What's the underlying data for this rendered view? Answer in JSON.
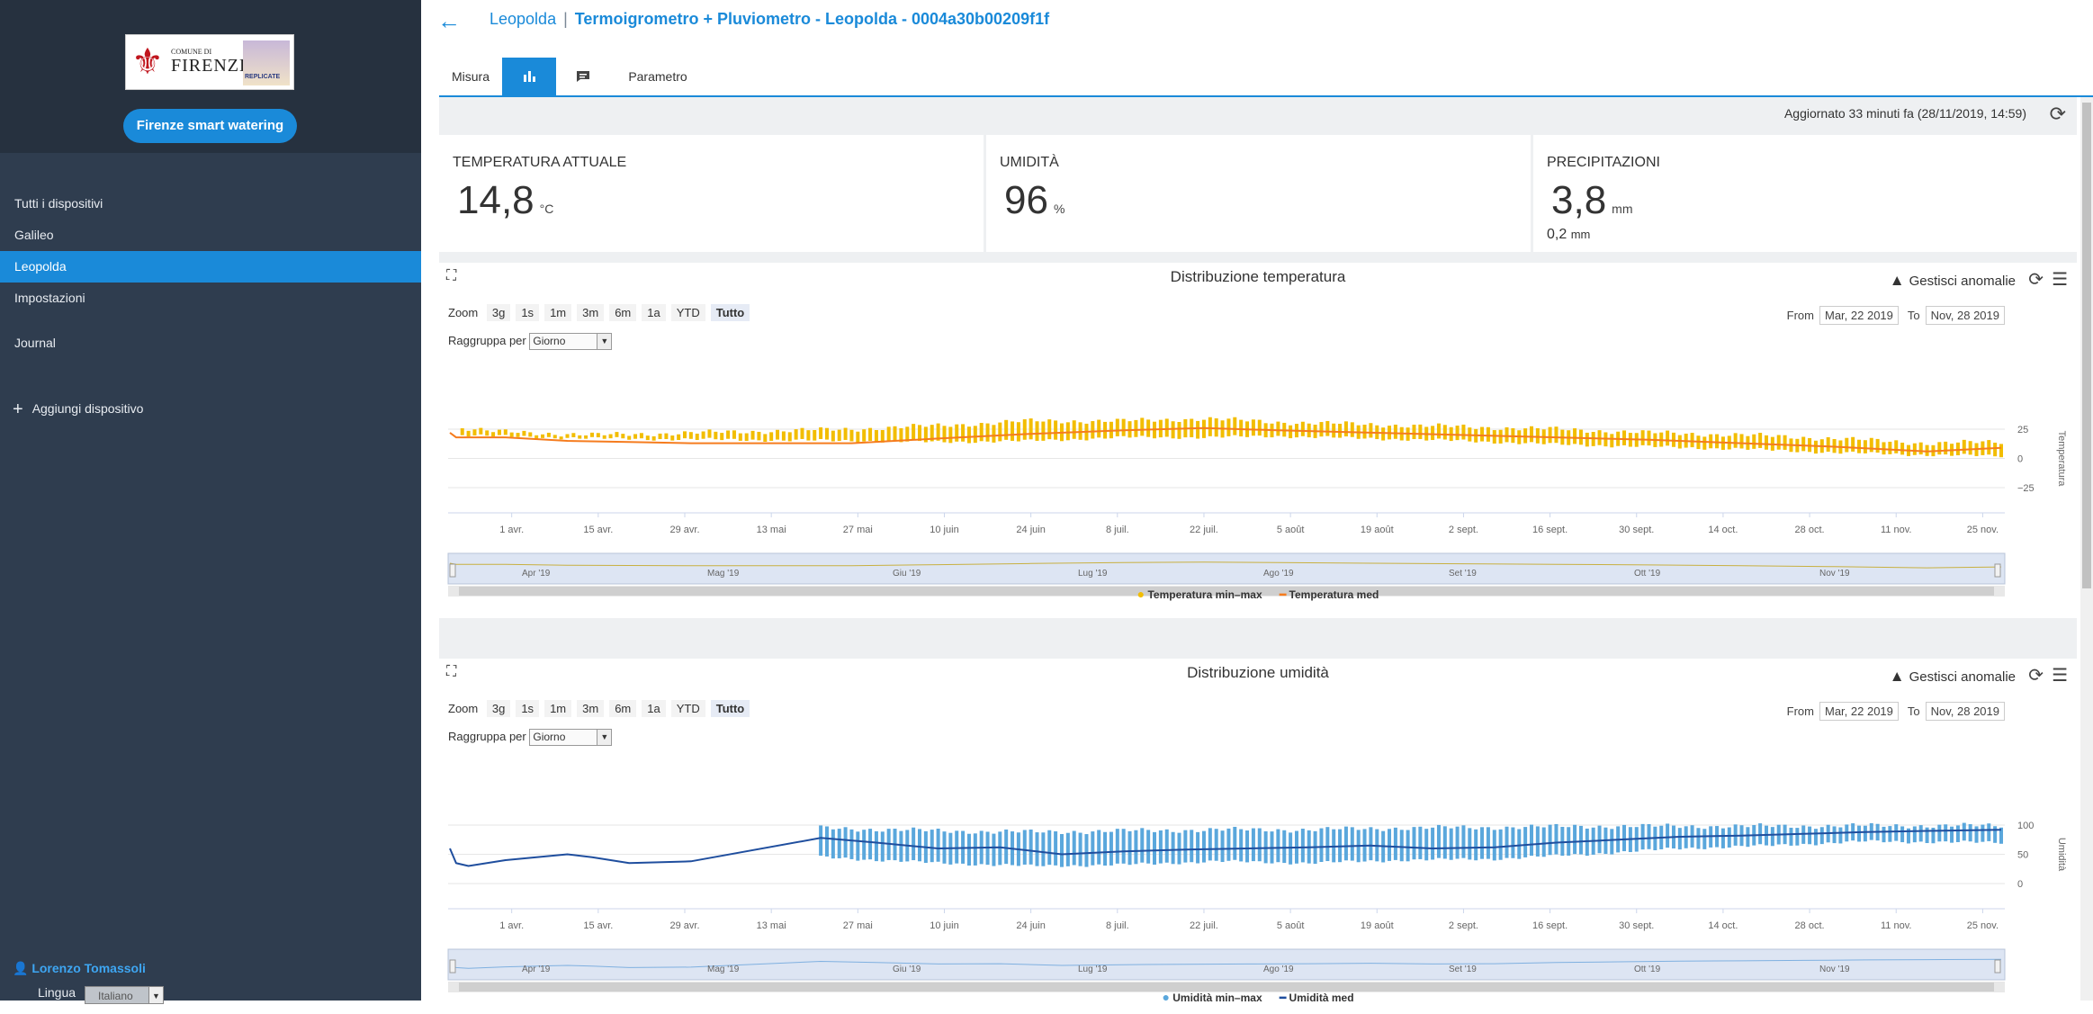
{
  "sidebar": {
    "logo": {
      "comune_small": "COMUNE DI",
      "comune_name": "FIRENZE",
      "partner": "REPLICATE"
    },
    "app_button": "Firenze smart watering",
    "nav": [
      "Tutti i dispositivi",
      "Galileo",
      "Leopolda",
      "Impostazioni",
      "Journal"
    ],
    "active_nav": "Leopolda",
    "add_device": "Aggiungi dispositivo",
    "user": "Lorenzo Tomassoli",
    "language_label": "Lingua",
    "language_value": "Italiano"
  },
  "header": {
    "breadcrumb_parent": "Leopolda",
    "separator": "|",
    "title": "Termoigrometro + Pluviometro - Leopolda - 0004a30b00209f1f"
  },
  "tabs": {
    "misura": "Misura",
    "chart_icon": "bar-chart-icon",
    "comment_icon": "comment-icon",
    "parametro": "Parametro"
  },
  "status": {
    "updated": "Aggiornato 33 minuti fa (28/11/2019, 14:59)"
  },
  "kpis": {
    "temperature": {
      "label": "TEMPERATURA ATTUALE",
      "value": "14,8",
      "unit": "°C"
    },
    "humidity": {
      "label": "UMIDITÀ",
      "value": "96",
      "unit": "%"
    },
    "rain": {
      "label": "PRECIPITAZIONI",
      "value": "3,8",
      "unit": "mm",
      "sub_value": "0,2",
      "sub_unit": "mm"
    }
  },
  "controls": {
    "zoom_label": "Zoom",
    "zoom_buttons": [
      "3g",
      "1s",
      "1m",
      "3m",
      "6m",
      "1a",
      "YTD",
      "Tutto"
    ],
    "zoom_selected": "Tutto",
    "group_label": "Raggruppa per",
    "group_value": "Giorno",
    "from_label": "From",
    "from_value": "Mar, 22 2019",
    "to_label": "To",
    "to_value": "Nov, 28 2019",
    "anomalies": "Gestisci anomalie"
  },
  "colors": {
    "accent": "#1a8ad9",
    "sidebar": "#2f3d4f",
    "temp_minmax": "#f2bd00",
    "temp_avg": "#f57c1f",
    "hum_minmax": "#5aa7dc",
    "hum_avg": "#1f4e9e"
  },
  "chart_data": [
    {
      "type": "bar",
      "title": "Distribuzione temperatura",
      "ylabel": "Temperatura",
      "ylim": [
        -25,
        25
      ],
      "yticks": [
        "25",
        "0",
        "−25"
      ],
      "xticks": [
        "1 avr.",
        "15 avr.",
        "29 avr.",
        "13 mai",
        "27 mai",
        "10 juin",
        "24 juin",
        "8 juil.",
        "22 juil.",
        "5 août",
        "19 août",
        "2 sept.",
        "16 sept.",
        "30 sept.",
        "14 oct.",
        "28 oct.",
        "11 nov.",
        "25 nov."
      ],
      "navigator_labels": [
        "Apr '19",
        "Mag '19",
        "Giu '19",
        "Lug '19",
        "Ago '19",
        "Set '19",
        "Ott '19",
        "Nov '19"
      ],
      "series": [
        {
          "name": "Temperatura min–max",
          "kind": "range",
          "start_day": 83,
          "checkpoints": [
            [
              83,
              20,
              26
            ],
            [
              88,
              19,
              23
            ],
            [
              105,
              17,
              20
            ],
            [
              146,
              15,
              25
            ],
            [
              160,
              14,
              28
            ],
            [
              175,
              15,
              32
            ],
            [
              190,
              18,
              32
            ],
            [
              203,
              18,
              34
            ],
            [
              215,
              19,
              31
            ],
            [
              230,
              17,
              29
            ],
            [
              245,
              15,
              27
            ],
            [
              260,
              12,
              25
            ],
            [
              275,
              10,
              22
            ],
            [
              290,
              8,
              20
            ],
            [
              305,
              5,
              17
            ],
            [
              320,
              3,
              13
            ],
            [
              332,
              2,
              14
            ]
          ]
        },
        {
          "name": "Temperatura med",
          "x": [
            81,
            82,
            90,
            100,
            110,
            120,
            140,
            146,
            160,
            175,
            190,
            203,
            215,
            230,
            245,
            260,
            275,
            290,
            305,
            320,
            332
          ],
          "y": [
            22,
            18,
            18,
            15,
            14,
            13,
            13,
            13,
            17,
            21,
            24,
            26,
            24,
            22,
            20,
            18,
            16,
            13,
            10,
            6,
            9
          ]
        }
      ]
    },
    {
      "type": "bar",
      "title": "Distribuzione umidità",
      "ylabel": "Umidità",
      "ylim": [
        0,
        100
      ],
      "yticks": [
        "100",
        "50",
        "0"
      ],
      "xticks": [
        "1 avr.",
        "15 avr.",
        "29 avr.",
        "13 mai",
        "27 mai",
        "10 juin",
        "24 juin",
        "8 juil.",
        "22 juil.",
        "5 août",
        "19 août",
        "2 sept.",
        "16 sept.",
        "30 sept.",
        "14 oct.",
        "28 oct.",
        "11 nov.",
        "25 nov."
      ],
      "navigator_labels": [
        "Apr '19",
        "Mag '19",
        "Giu '19",
        "Lug '19",
        "Ago '19",
        "Set '19",
        "Ott '19",
        "Nov '19"
      ],
      "series": [
        {
          "name": "Umidità min–max",
          "kind": "range",
          "start_day": 141,
          "checkpoints": [
            [
              141,
              45,
              95
            ],
            [
              160,
              35,
              90
            ],
            [
              175,
              30,
              88
            ],
            [
              190,
              32,
              90
            ],
            [
              205,
              38,
              92
            ],
            [
              220,
              35,
              92
            ],
            [
              235,
              40,
              95
            ],
            [
              250,
              42,
              96
            ],
            [
              265,
              50,
              98
            ],
            [
              280,
              60,
              98
            ],
            [
              295,
              65,
              98
            ],
            [
              310,
              72,
              99
            ],
            [
              332,
              70,
              99
            ]
          ]
        },
        {
          "name": "Umidità med",
          "x": [
            81,
            82,
            84,
            90,
            95,
            100,
            104,
            110,
            120,
            141,
            150,
            160,
            170,
            180,
            190,
            200,
            210,
            220,
            230,
            240,
            250,
            260,
            270,
            280,
            290,
            300,
            310,
            320,
            332
          ],
          "y": [
            60,
            35,
            30,
            40,
            45,
            50,
            45,
            35,
            38,
            78,
            70,
            60,
            62,
            50,
            55,
            58,
            60,
            62,
            65,
            60,
            62,
            70,
            75,
            80,
            82,
            85,
            88,
            90,
            92
          ]
        }
      ]
    }
  ]
}
